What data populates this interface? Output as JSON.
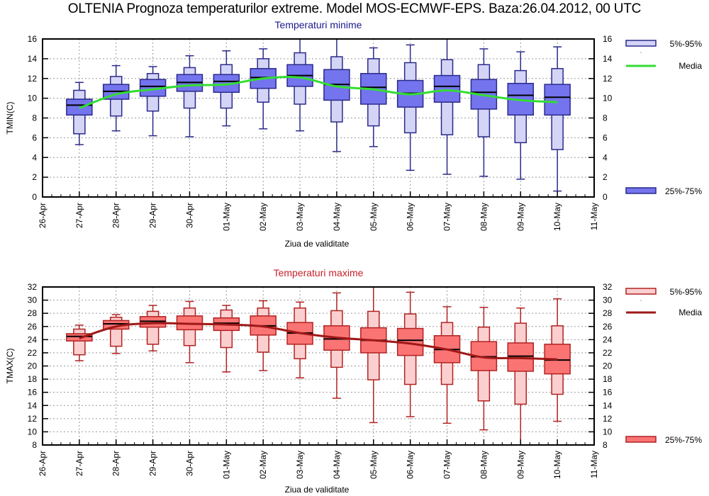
{
  "title": "OLTENIA  Prognoza temperaturilor extreme.  Model MOS-ECMWF-EPS. Baza:26.04.2012, 00 UTC",
  "chart_data": [
    {
      "type": "boxplot",
      "title": "Temperaturi minime",
      "title_color": "#1a1a8c",
      "xlabel": "Ziua de validitate",
      "ylabel": "TMIN(C)",
      "ylim": [
        0,
        16
      ],
      "yticks": [
        0,
        2,
        4,
        6,
        8,
        10,
        12,
        14,
        16
      ],
      "x_ticks": [
        "26-Apr",
        "27-Apr",
        "28-Apr",
        "29-Apr",
        "30-Apr",
        "01-May",
        "02-May",
        "03-May",
        "04-May",
        "05-May",
        "06-May",
        "07-May",
        "08-May",
        "09-May",
        "10-May",
        "11-May"
      ],
      "grid": true,
      "colors": {
        "outer_fill": "#d4d4f7",
        "inner_fill": "#7474ee",
        "stroke": "#2a2a8a",
        "median": "#000000",
        "mean_line": "#33dd33"
      },
      "legend": {
        "placement": "right",
        "entries": [
          "5%-95%",
          "Media",
          "25%-75%"
        ]
      },
      "categories": [
        "27-Apr",
        "28-Apr",
        "29-Apr",
        "30-Apr",
        "01-May",
        "02-May",
        "03-May",
        "04-May",
        "05-May",
        "06-May",
        "07-May",
        "08-May",
        "09-May",
        "10-May"
      ],
      "min": [
        5.3,
        6.7,
        6.2,
        6.1,
        7.2,
        6.9,
        6.7,
        4.6,
        5.1,
        2.7,
        2.3,
        2.1,
        1.8,
        0.6
      ],
      "p5": [
        6.4,
        8.2,
        8.7,
        9.0,
        9.0,
        9.6,
        9.4,
        7.6,
        7.2,
        6.5,
        6.3,
        6.1,
        5.5,
        4.8
      ],
      "p25": [
        8.3,
        9.9,
        10.2,
        10.7,
        10.6,
        11.0,
        11.2,
        9.8,
        9.4,
        9.1,
        9.6,
        8.9,
        8.3,
        8.3
      ],
      "median": [
        9.3,
        10.7,
        11.2,
        11.6,
        11.7,
        12.1,
        12.3,
        11.4,
        11.1,
        10.5,
        11.2,
        10.6,
        10.3,
        10.1
      ],
      "p75": [
        9.9,
        11.4,
        11.9,
        12.4,
        12.4,
        13.0,
        13.4,
        12.9,
        12.5,
        11.8,
        12.3,
        11.9,
        11.5,
        11.4
      ],
      "p95": [
        10.8,
        12.2,
        12.5,
        13.1,
        13.4,
        14.0,
        14.6,
        14.2,
        14.0,
        13.6,
        13.9,
        13.4,
        12.8,
        13.0
      ],
      "max": [
        11.6,
        13.3,
        13.2,
        14.3,
        14.8,
        15.0,
        16.0,
        16.0,
        15.1,
        15.4,
        16.0,
        15.0,
        14.7,
        15.2
      ],
      "mean": [
        9.0,
        10.4,
        10.9,
        11.3,
        11.4,
        12.0,
        12.1,
        11.2,
        10.9,
        10.4,
        10.8,
        10.3,
        9.8,
        9.6
      ]
    },
    {
      "type": "boxplot",
      "title": "Temperaturi maxime",
      "title_color": "#c8202a",
      "xlabel": "Ziua de validitate",
      "ylabel": "TMAX(C)",
      "ylim": [
        8,
        32
      ],
      "yticks": [
        8,
        10,
        12,
        14,
        16,
        18,
        20,
        22,
        24,
        26,
        28,
        30,
        32
      ],
      "x_ticks": [
        "26-Apr",
        "27-Apr",
        "28-Apr",
        "29-Apr",
        "30-Apr",
        "01-May",
        "02-May",
        "03-May",
        "04-May",
        "05-May",
        "06-May",
        "07-May",
        "08-May",
        "09-May",
        "10-May",
        "11-May"
      ],
      "grid": true,
      "colors": {
        "outer_fill": "#fbcfcf",
        "inner_fill": "#fa7474",
        "stroke": "#b22222",
        "median": "#000000",
        "mean_line": "#a01818"
      },
      "legend": {
        "placement": "right",
        "entries": [
          "5%-95%",
          "Media",
          "25%-75%"
        ]
      },
      "categories": [
        "27-Apr",
        "28-Apr",
        "29-Apr",
        "30-Apr",
        "01-May",
        "02-May",
        "03-May",
        "04-May",
        "05-May",
        "06-May",
        "07-May",
        "08-May",
        "09-May",
        "10-May"
      ],
      "min": [
        20.8,
        21.9,
        22.3,
        20.5,
        19.1,
        19.3,
        18.2,
        15.1,
        11.4,
        12.3,
        11.3,
        10.3,
        8.0,
        11.6
      ],
      "p5": [
        21.7,
        23.0,
        23.3,
        23.1,
        22.8,
        22.1,
        21.1,
        19.8,
        17.9,
        17.2,
        17.2,
        14.7,
        14.2,
        15.7
      ],
      "p25": [
        23.8,
        25.6,
        25.9,
        25.5,
        25.4,
        24.7,
        23.3,
        22.4,
        22.0,
        21.6,
        20.5,
        19.3,
        19.2,
        18.8
      ],
      "median": [
        24.5,
        26.4,
        26.8,
        26.4,
        26.5,
        26.1,
        25.0,
        24.1,
        23.9,
        23.9,
        22.5,
        21.4,
        21.5,
        20.9
      ],
      "p75": [
        24.9,
        26.9,
        27.5,
        27.6,
        27.3,
        27.6,
        26.6,
        26.1,
        25.8,
        25.7,
        24.6,
        23.7,
        23.5,
        23.3
      ],
      "p95": [
        25.6,
        27.4,
        28.3,
        28.8,
        28.5,
        28.8,
        28.8,
        28.4,
        28.3,
        27.9,
        26.6,
        25.9,
        26.5,
        26.1
      ],
      "max": [
        26.2,
        27.8,
        29.2,
        29.8,
        29.2,
        29.9,
        29.7,
        31.1,
        32.0,
        31.2,
        29.0,
        28.9,
        28.8,
        30.2
      ],
      "mean": [
        24.2,
        26.0,
        26.5,
        26.4,
        26.3,
        26.0,
        25.0,
        24.3,
        23.9,
        23.4,
        22.5,
        21.3,
        21.2,
        21.0
      ]
    }
  ]
}
